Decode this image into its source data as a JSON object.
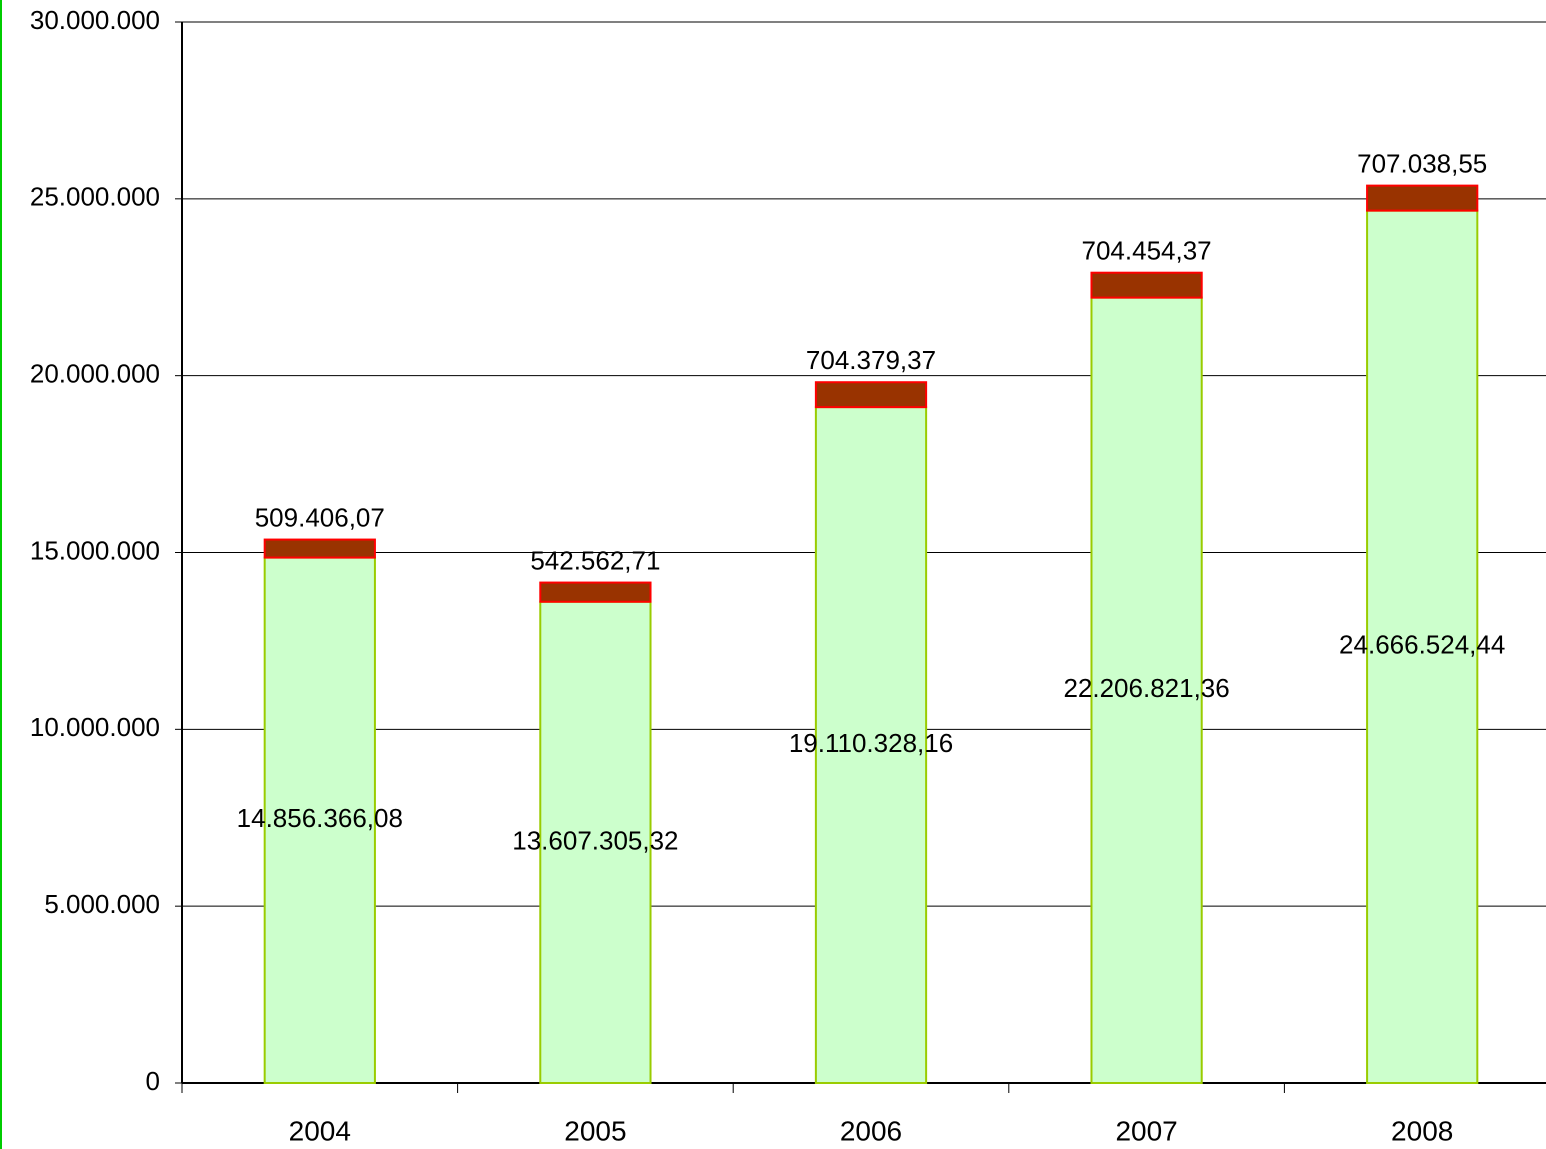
{
  "chart_data": {
    "type": "stacked_bar",
    "categories": [
      "2004",
      "2005",
      "2006",
      "2007",
      "2008"
    ],
    "series": [
      {
        "color": "#ccffcc",
        "edgecolor": "#99cc00",
        "values": [
          14856366.08,
          13607305.32,
          19110328.16,
          22206821.36,
          24666524.44
        ],
        "value_labels": [
          "14.856.366,08",
          "13.607.305,32",
          "19.110.328,16",
          "22.206.821,36",
          "24.666.524,44"
        ]
      },
      {
        "color": "#993300",
        "edgecolor": "#ff0000",
        "values": [
          509406.07,
          542562.71,
          704379.37,
          704454.37,
          707038.55
        ],
        "value_labels": [
          "509.406,07",
          "542.562,71",
          "704.379,37",
          "704.454,37",
          "707.038,55"
        ]
      }
    ],
    "ylim": [
      0,
      30000000
    ],
    "yticks": [
      0,
      {
        "value": 5000000,
        "label": "5.000.000"
      },
      {
        "value": 10000000,
        "label": "10.000.000"
      },
      {
        "value": 15000000,
        "label": "15.000.000"
      },
      {
        "value": 20000000,
        "label": "20.000.000"
      },
      {
        "value": 25000000,
        "label": "25.000.000"
      },
      {
        "value": 30000000,
        "label": "30.000.000"
      }
    ],
    "grid": true
  }
}
